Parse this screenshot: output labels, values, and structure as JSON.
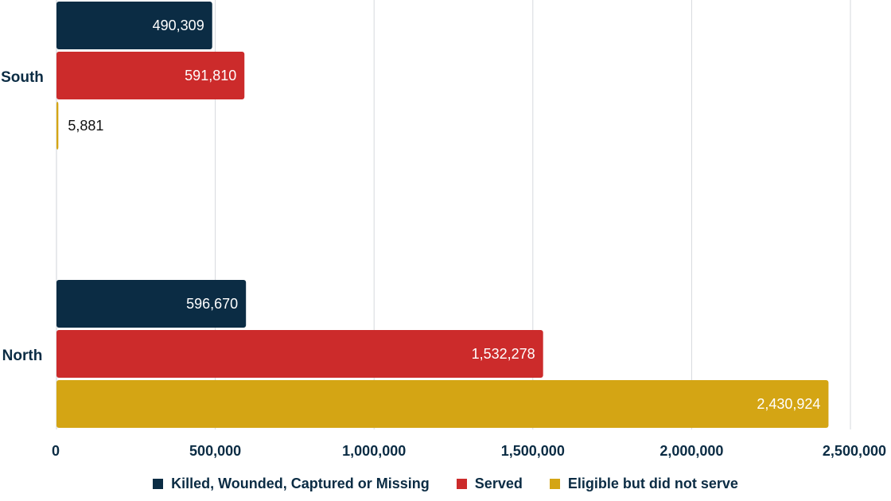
{
  "chart_data": {
    "type": "bar",
    "orientation": "horizontal",
    "categories": [
      "South",
      "North"
    ],
    "series": [
      {
        "name": "Killed, Wounded, Captured or Missing",
        "color": "#0b2c44",
        "values": [
          490309,
          596670
        ],
        "labels": [
          "490,309",
          "596,670"
        ]
      },
      {
        "name": "Served",
        "color": "#cc2b2b",
        "values": [
          591810,
          1532278
        ],
        "labels": [
          "591,810",
          "1,532,278"
        ]
      },
      {
        "name": "Eligible but did not serve",
        "color": "#d4a514",
        "values": [
          5881,
          2430924
        ],
        "labels": [
          "5,881",
          "2,430,924"
        ]
      }
    ],
    "xlim": [
      0,
      2500000
    ],
    "xticks": [
      0,
      500000,
      1000000,
      1500000,
      2000000,
      2500000
    ],
    "xtick_labels": [
      "0",
      "500,000",
      "1,000,000",
      "1,500,000",
      "2,000,000",
      "2,500,000"
    ],
    "grid": true,
    "legend_position": "bottom",
    "title": "",
    "xlabel": "",
    "ylabel": ""
  }
}
